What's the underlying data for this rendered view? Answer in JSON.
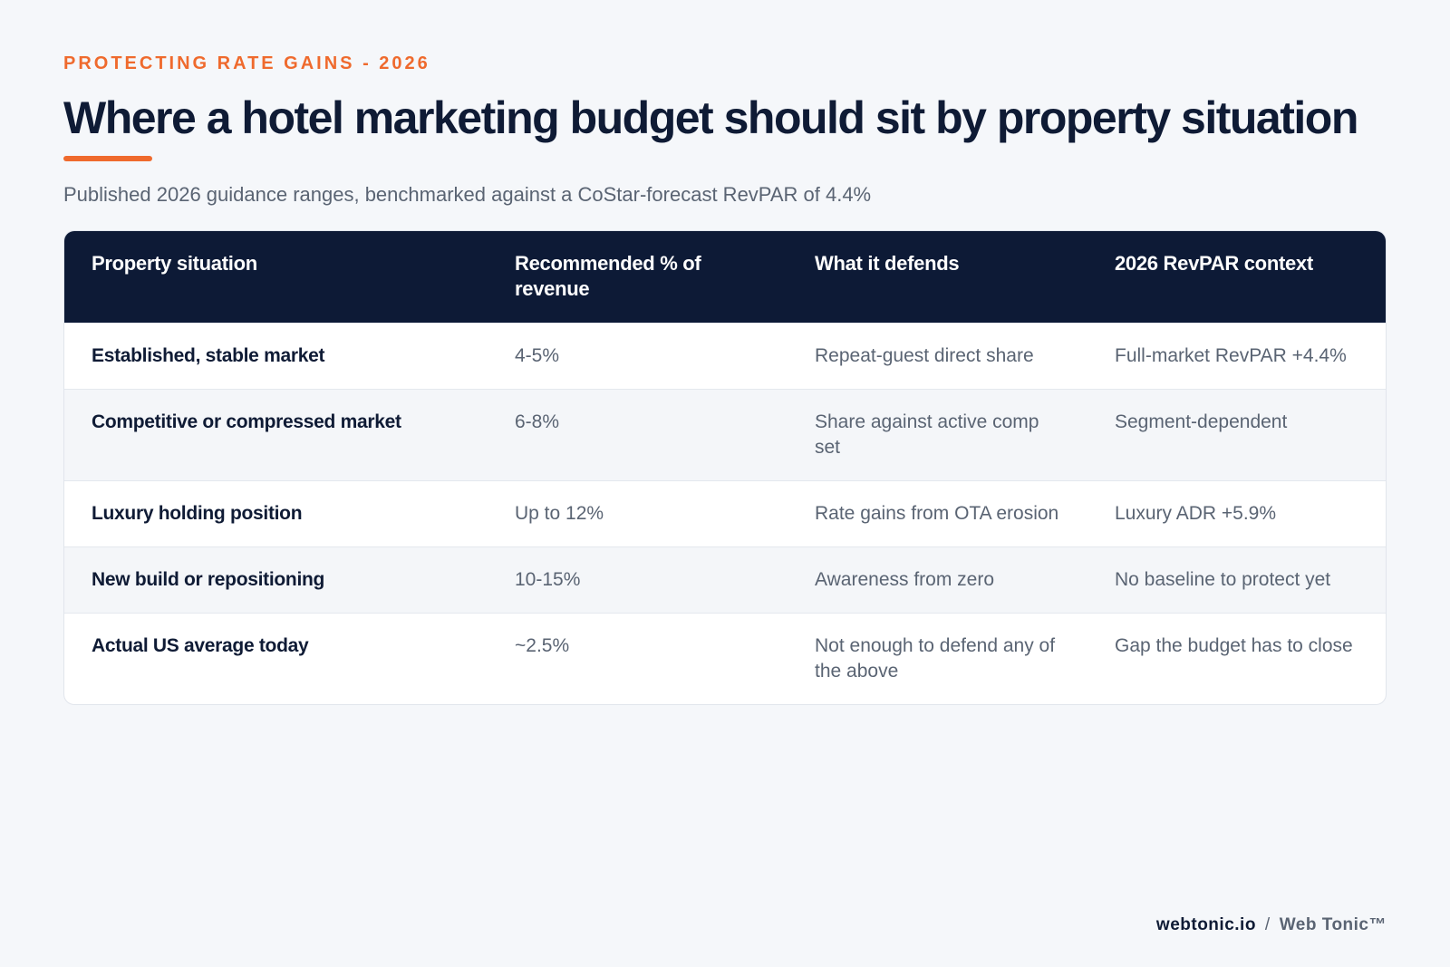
{
  "header": {
    "eyebrow": "PROTECTING RATE GAINS - 2026",
    "title": "Where a hotel marketing budget should sit by property situation",
    "subtitle": "Published 2026 guidance ranges, benchmarked against a CoStar-forecast RevPAR of 4.4%"
  },
  "table": {
    "columns": [
      "Property situation",
      "Recommended % of revenue",
      "What it defends",
      "2026 RevPAR context"
    ],
    "rows": [
      [
        "Established, stable market",
        "4-5%",
        "Repeat-guest direct share",
        "Full-market RevPAR +4.4%"
      ],
      [
        "Competitive or compressed market",
        "6-8%",
        "Share against active comp set",
        "Segment-dependent"
      ],
      [
        "Luxury holding position",
        "Up to 12%",
        "Rate gains from OTA erosion",
        "Luxury ADR +5.9%"
      ],
      [
        "New build or repositioning",
        "10-15%",
        "Awareness from zero",
        "No baseline to protect yet"
      ],
      [
        "Actual US average today",
        "~2.5%",
        "Not enough to defend any of the above",
        "Gap the budget has to close"
      ]
    ]
  },
  "footer": {
    "site": "webtonic.io",
    "separator": "/",
    "brand": "Web Tonic™"
  },
  "colors": {
    "accent": "#ef6a2d",
    "navy": "#0d1a36",
    "background": "#f5f7fa"
  }
}
